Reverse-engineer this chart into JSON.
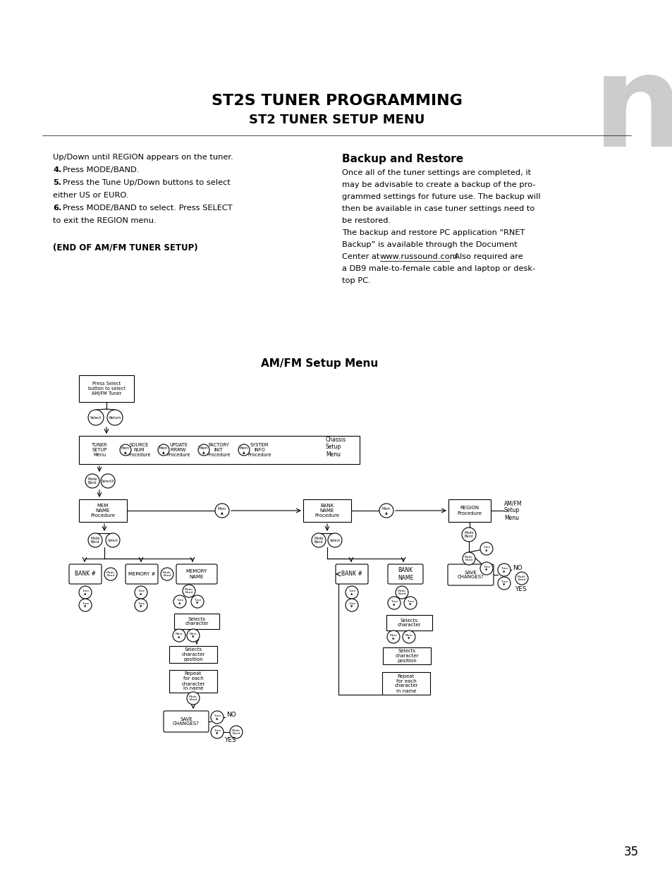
{
  "bg_color": "#ffffff",
  "title1": "ST2S TUNER PROGRAMMING",
  "title2": "ST2 TUNER SETUP MENU",
  "page_number": "35"
}
